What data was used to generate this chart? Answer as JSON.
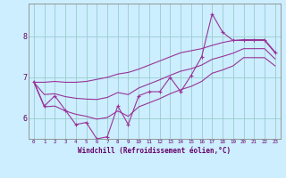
{
  "xlabel": "Windchill (Refroidissement éolien,°C)",
  "x_hours": [
    0,
    1,
    2,
    3,
    4,
    5,
    6,
    7,
    8,
    9,
    10,
    11,
    12,
    13,
    14,
    15,
    16,
    17,
    18,
    19,
    20,
    21,
    22,
    23
  ],
  "line_main": [
    6.9,
    6.3,
    6.55,
    6.2,
    5.85,
    5.9,
    5.5,
    5.55,
    6.3,
    5.85,
    6.55,
    6.65,
    6.65,
    7.0,
    6.65,
    7.05,
    7.5,
    8.55,
    8.1,
    7.9,
    7.9,
    7.9,
    7.9,
    7.6
  ],
  "line_upper": [
    6.88,
    6.88,
    6.9,
    6.88,
    6.88,
    6.9,
    6.95,
    7.0,
    7.08,
    7.12,
    7.2,
    7.3,
    7.4,
    7.5,
    7.6,
    7.65,
    7.7,
    7.78,
    7.85,
    7.9,
    7.92,
    7.92,
    7.92,
    7.62
  ],
  "line_lower": [
    6.88,
    6.28,
    6.3,
    6.18,
    6.1,
    6.05,
    5.98,
    6.02,
    6.18,
    6.05,
    6.28,
    6.38,
    6.48,
    6.6,
    6.7,
    6.78,
    6.9,
    7.1,
    7.18,
    7.28,
    7.48,
    7.48,
    7.48,
    7.28
  ],
  "line_mid": [
    6.88,
    6.58,
    6.6,
    6.53,
    6.49,
    6.47,
    6.46,
    6.51,
    6.63,
    6.58,
    6.74,
    6.84,
    6.94,
    7.05,
    7.15,
    7.21,
    7.3,
    7.44,
    7.51,
    7.59,
    7.7,
    7.7,
    7.7,
    7.45
  ],
  "color": "#993399",
  "bg_color": "#cceeff",
  "grid_color": "#99cccc",
  "ylim": [
    5.5,
    8.8
  ],
  "xlim": [
    -0.5,
    23.5
  ],
  "yticks": [
    6,
    7,
    8
  ],
  "xticks": [
    0,
    1,
    2,
    3,
    4,
    5,
    6,
    7,
    8,
    9,
    10,
    11,
    12,
    13,
    14,
    15,
    16,
    17,
    18,
    19,
    20,
    21,
    22,
    23
  ]
}
